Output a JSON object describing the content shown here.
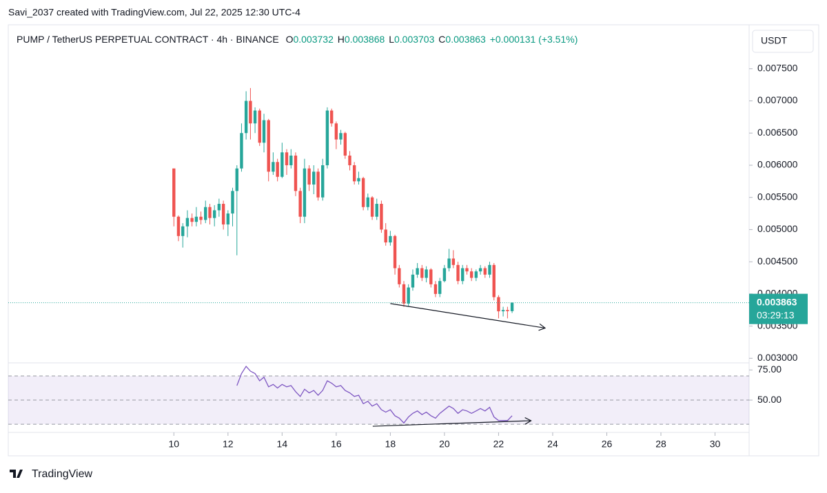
{
  "chart_data": {
    "type": "candlestick",
    "credit": "Savi_2037 created with TradingView.com, Jul 22, 2025 12:30 UTC-4",
    "title": "PUMP / TetherUS PERPETUAL CONTRACT · 4h · BINANCE",
    "ohlc_labels": [
      "O",
      "H",
      "L",
      "C"
    ],
    "change": "+0.000131 (+3.51%)",
    "currency": "USDT",
    "countdown": "03:29:13",
    "footer": "TradingView",
    "up_color": "#26a69a",
    "down_color": "#ef5350",
    "x": [
      10,
      10.17,
      10.33,
      10.5,
      10.67,
      10.83,
      11,
      11.17,
      11.33,
      11.5,
      11.67,
      11.83,
      12,
      12.17,
      12.33,
      12.5,
      12.67,
      12.83,
      13,
      13.17,
      13.33,
      13.5,
      13.67,
      13.83,
      14,
      14.17,
      14.33,
      14.5,
      14.67,
      14.83,
      15,
      15.17,
      15.33,
      15.5,
      15.67,
      15.83,
      16,
      16.17,
      16.33,
      16.5,
      16.67,
      16.83,
      17,
      17.17,
      17.33,
      17.5,
      17.67,
      17.83,
      18,
      18.17,
      18.33,
      18.5,
      18.67,
      18.83,
      19,
      19.17,
      19.33,
      19.5,
      19.67,
      19.83,
      20,
      20.17,
      20.33,
      20.5,
      20.67,
      20.83,
      21,
      21.17,
      21.33,
      21.5,
      21.67,
      21.83,
      22,
      22.17,
      22.33,
      22.5
    ],
    "open": [
      0.00595,
      0.0052,
      0.0049,
      0.00505,
      0.00518,
      0.00512,
      0.0052,
      0.00515,
      0.00535,
      0.00518,
      0.0053,
      0.0054,
      0.00508,
      0.00525,
      0.0056,
      0.00595,
      0.0065,
      0.007,
      0.00665,
      0.00685,
      0.00635,
      0.0067,
      0.0059,
      0.00605,
      0.00582,
      0.0062,
      0.006,
      0.00615,
      0.0056,
      0.0052,
      0.00595,
      0.0057,
      0.0059,
      0.0055,
      0.006,
      0.00685,
      0.00665,
      0.0064,
      0.0065,
      0.00615,
      0.006,
      0.00575,
      0.0058,
      0.00535,
      0.0055,
      0.0052,
      0.0054,
      0.005,
      0.0048,
      0.0049,
      0.0044,
      0.00415,
      0.00385,
      0.0041,
      0.0043,
      0.0044,
      0.00425,
      0.00438,
      0.00415,
      0.004,
      0.0042,
      0.0044,
      0.00455,
      0.00445,
      0.0042,
      0.0044,
      0.00435,
      0.00425,
      0.00435,
      0.0044,
      0.0043,
      0.00445,
      0.00395,
      0.00373,
      0.00375,
      0.003732
    ],
    "high": [
      0.00595,
      0.00522,
      0.0051,
      0.0053,
      0.00525,
      0.00535,
      0.00528,
      0.00545,
      0.0054,
      0.00538,
      0.00548,
      0.00545,
      0.0053,
      0.00565,
      0.006,
      0.00665,
      0.00715,
      0.0072,
      0.0069,
      0.00688,
      0.0068,
      0.00672,
      0.0062,
      0.0061,
      0.00635,
      0.00625,
      0.00625,
      0.0062,
      0.00565,
      0.0061,
      0.006,
      0.006,
      0.00595,
      0.0061,
      0.0069,
      0.00688,
      0.00668,
      0.00655,
      0.00652,
      0.00622,
      0.00605,
      0.0059,
      0.00582,
      0.00556,
      0.00552,
      0.00548,
      0.00545,
      0.0051,
      0.00498,
      0.00492,
      0.00445,
      0.0042,
      0.00415,
      0.00438,
      0.00448,
      0.00445,
      0.00443,
      0.0044,
      0.0042,
      0.00425,
      0.00445,
      0.0047,
      0.00468,
      0.0045,
      0.00445,
      0.00445,
      0.0044,
      0.00438,
      0.00445,
      0.00443,
      0.0045,
      0.00448,
      0.00398,
      0.0038,
      0.0038,
      0.003868
    ],
    "low": [
      0.00505,
      0.00482,
      0.00472,
      0.00488,
      0.00505,
      0.00505,
      0.00508,
      0.0051,
      0.00508,
      0.00505,
      0.0052,
      0.005,
      0.0049,
      0.00505,
      0.0046,
      0.0059,
      0.0064,
      0.0064,
      0.0065,
      0.0063,
      0.0062,
      0.00575,
      0.00585,
      0.00575,
      0.0058,
      0.00585,
      0.00595,
      0.00552,
      0.0051,
      0.0051,
      0.0056,
      0.00555,
      0.00545,
      0.00545,
      0.00595,
      0.0066,
      0.00625,
      0.00632,
      0.0061,
      0.00592,
      0.0057,
      0.0057,
      0.0053,
      0.0053,
      0.00515,
      0.00515,
      0.00495,
      0.00475,
      0.00475,
      0.0043,
      0.0041,
      0.0038,
      0.0038,
      0.00405,
      0.00425,
      0.0042,
      0.00418,
      0.0041,
      0.00395,
      0.00395,
      0.00418,
      0.00435,
      0.0044,
      0.00415,
      0.00415,
      0.0043,
      0.0042,
      0.0042,
      0.0043,
      0.00425,
      0.00425,
      0.0039,
      0.00362,
      0.00365,
      0.00362,
      0.003703
    ],
    "close": [
      0.0052,
      0.0049,
      0.00505,
      0.00518,
      0.00512,
      0.0052,
      0.00515,
      0.00535,
      0.00518,
      0.0053,
      0.0054,
      0.00508,
      0.00525,
      0.0056,
      0.00595,
      0.0065,
      0.007,
      0.00665,
      0.00685,
      0.00635,
      0.0067,
      0.0059,
      0.00605,
      0.00582,
      0.0062,
      0.006,
      0.00615,
      0.0056,
      0.0052,
      0.00595,
      0.0057,
      0.0059,
      0.0055,
      0.006,
      0.00685,
      0.00665,
      0.0064,
      0.0065,
      0.00615,
      0.006,
      0.00575,
      0.0058,
      0.00535,
      0.0055,
      0.0052,
      0.0054,
      0.005,
      0.0048,
      0.0049,
      0.0044,
      0.00415,
      0.00385,
      0.0041,
      0.0043,
      0.0044,
      0.00425,
      0.00438,
      0.00415,
      0.004,
      0.0042,
      0.0044,
      0.00455,
      0.00445,
      0.0042,
      0.0044,
      0.00435,
      0.00425,
      0.00435,
      0.0044,
      0.0043,
      0.00445,
      0.00395,
      0.00373,
      0.00375,
      0.003732,
      0.003863
    ],
    "xlim": [
      3.88,
      31.26
    ],
    "xticks": [
      10,
      12,
      14,
      16,
      18,
      20,
      22,
      24,
      26,
      28,
      30
    ],
    "ylim": [
      0.00295,
      0.00814
    ],
    "yticks": [
      {
        "value": 0.003,
        "label": "0.003000"
      },
      {
        "value": 0.0035,
        "label": "0.003500"
      },
      {
        "value": 0.004,
        "label": "0.004000"
      },
      {
        "value": 0.0045,
        "label": "0.004500"
      },
      {
        "value": 0.005,
        "label": "0.005000"
      },
      {
        "value": 0.0055,
        "label": "0.005500"
      },
      {
        "value": 0.006,
        "label": "0.006000"
      },
      {
        "value": 0.0065,
        "label": "0.006500"
      },
      {
        "value": 0.007,
        "label": "0.007000"
      },
      {
        "value": 0.0075,
        "label": "0.007500"
      }
    ],
    "trend_line": {
      "x": [
        18,
        23.72
      ],
      "y": [
        0.00385,
        0.00347
      ]
    },
    "rsi": {
      "color": "#7e57c2",
      "values": [
        null,
        null,
        null,
        null,
        null,
        null,
        null,
        null,
        null,
        null,
        null,
        null,
        null,
        null,
        62,
        72,
        78,
        74,
        72,
        66,
        69,
        61,
        63,
        60,
        63,
        61,
        62,
        57,
        53,
        59,
        56,
        58,
        54,
        58,
        66,
        64,
        61,
        62,
        58,
        56,
        53,
        54,
        47,
        49,
        45,
        47,
        42,
        40,
        42,
        37,
        35,
        31,
        36,
        39,
        41,
        38,
        40,
        37,
        35,
        39,
        42,
        45,
        43,
        39,
        42,
        41,
        39,
        41,
        43,
        41,
        44,
        36,
        33,
        33,
        33,
        37
      ],
      "ylim": [
        24.9,
        80.3
      ],
      "yticks": [
        {
          "value": 75,
          "label": "75.00"
        },
        {
          "value": 50,
          "label": "50.00"
        }
      ],
      "levels": [
        70,
        50,
        30
      ],
      "trend_line": {
        "x": [
          17.35,
          23.2
        ],
        "y": [
          28.3,
          32.9
        ]
      }
    }
  }
}
